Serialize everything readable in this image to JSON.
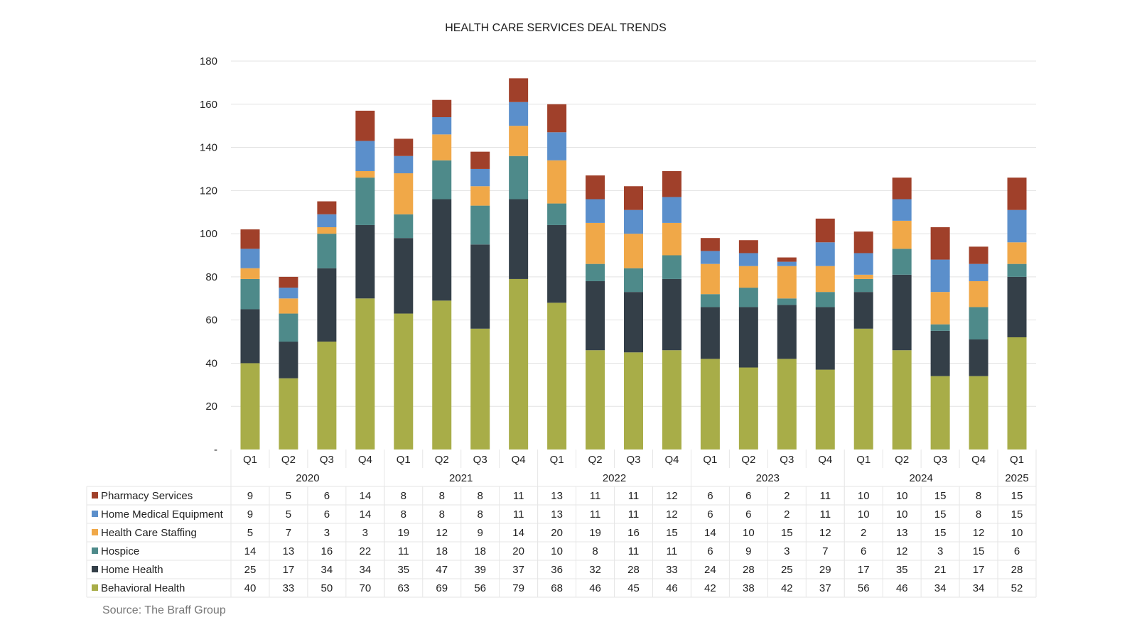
{
  "chart_data": {
    "type": "bar",
    "stacked": true,
    "title": "HEALTH CARE SERVICES DEAL TRENDS",
    "source": "Source: The Braff Group",
    "ylim": [
      0,
      180
    ],
    "yticks": [
      "-",
      "20",
      "40",
      "60",
      "80",
      "100",
      "120",
      "140",
      "160",
      "180"
    ],
    "grid": true,
    "legend": "table-left",
    "categories": [
      "Q1",
      "Q2",
      "Q3",
      "Q4",
      "Q1",
      "Q2",
      "Q3",
      "Q4",
      "Q1",
      "Q2",
      "Q3",
      "Q4",
      "Q1",
      "Q2",
      "Q3",
      "Q4",
      "Q1",
      "Q2",
      "Q3",
      "Q4",
      "Q1"
    ],
    "years": [
      {
        "label": "2020",
        "span": 4
      },
      {
        "label": "2021",
        "span": 4
      },
      {
        "label": "2022",
        "span": 4
      },
      {
        "label": "2023",
        "span": 4
      },
      {
        "label": "2024",
        "span": 4
      },
      {
        "label": "2025",
        "span": 1
      }
    ],
    "series": [
      {
        "name": "Behavioral Health",
        "color": "#A8AD48",
        "values": [
          40,
          33,
          50,
          70,
          63,
          69,
          56,
          79,
          68,
          46,
          45,
          46,
          42,
          38,
          42,
          37,
          56,
          46,
          34,
          34,
          52
        ]
      },
      {
        "name": "Home Health",
        "color": "#343F48",
        "values": [
          25,
          17,
          34,
          34,
          35,
          47,
          39,
          37,
          36,
          32,
          28,
          33,
          24,
          28,
          25,
          29,
          17,
          35,
          21,
          17,
          28
        ]
      },
      {
        "name": "Hospice",
        "color": "#4E8A8A",
        "values": [
          14,
          13,
          16,
          22,
          11,
          18,
          18,
          20,
          10,
          8,
          11,
          11,
          6,
          9,
          3,
          7,
          6,
          12,
          3,
          15,
          6
        ]
      },
      {
        "name": "Health Care Staffing",
        "color": "#F0A848",
        "values": [
          5,
          7,
          3,
          3,
          19,
          12,
          9,
          14,
          20,
          19,
          16,
          15,
          14,
          10,
          15,
          12,
          2,
          13,
          15,
          12,
          10
        ]
      },
      {
        "name": "Home Medical Equipment",
        "color": "#5B8FCB",
        "values": [
          9,
          5,
          6,
          14,
          8,
          8,
          8,
          11,
          13,
          11,
          11,
          12,
          6,
          6,
          2,
          11,
          10,
          10,
          15,
          8,
          15
        ]
      },
      {
        "name": "Pharmacy Services",
        "color": "#A0402A",
        "values": [
          9,
          5,
          6,
          14,
          8,
          8,
          8,
          11,
          13,
          11,
          11,
          12,
          6,
          6,
          2,
          11,
          10,
          10,
          15,
          8,
          15
        ]
      }
    ]
  }
}
